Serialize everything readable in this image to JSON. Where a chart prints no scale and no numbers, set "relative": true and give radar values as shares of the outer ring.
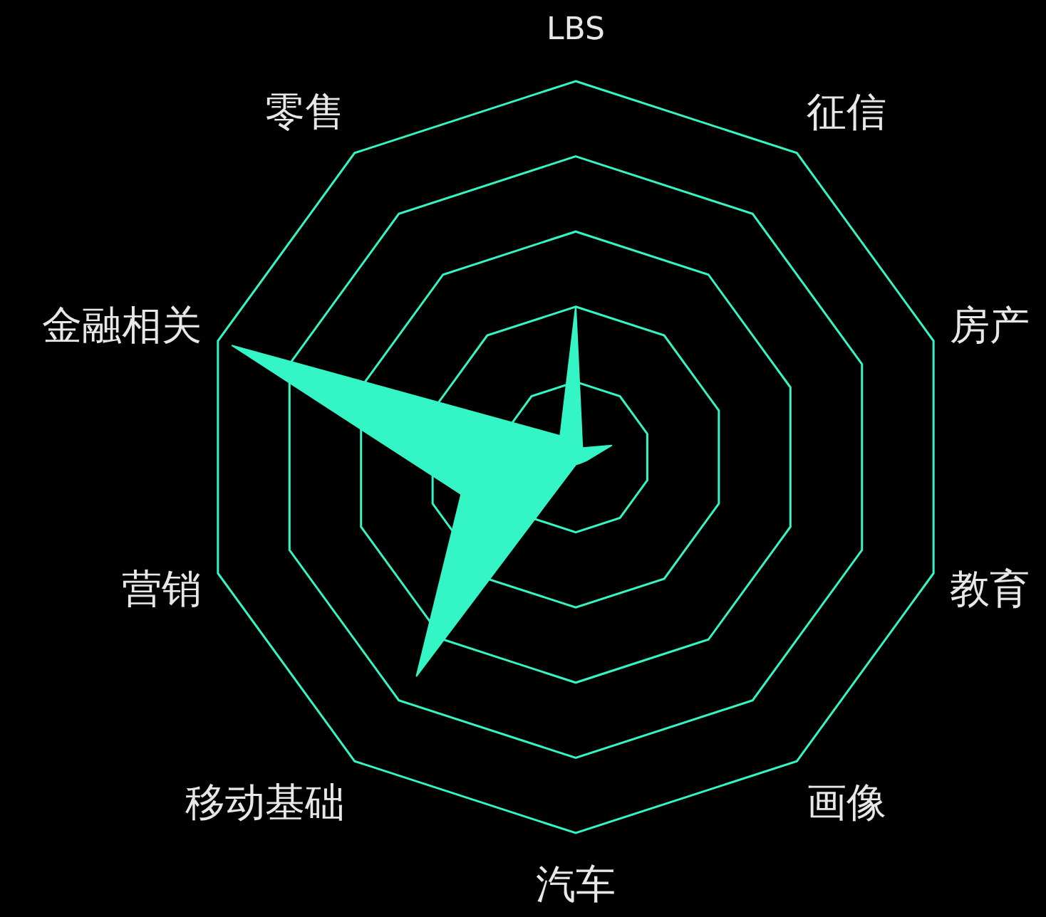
{
  "chart_data": {
    "type": "radar",
    "relative": true,
    "categories": [
      "LBS",
      "征信",
      "房产",
      "教育",
      "画像",
      "汽车",
      "移动基础",
      "营销",
      "金融相关",
      "零售"
    ],
    "series": [
      {
        "color": "#33f5c5",
        "values": [
          0.4,
          0.03,
          0.1,
          0.03,
          0.02,
          0.02,
          0.72,
          0.32,
          0.96,
          0.07
        ]
      }
    ]
  }
}
